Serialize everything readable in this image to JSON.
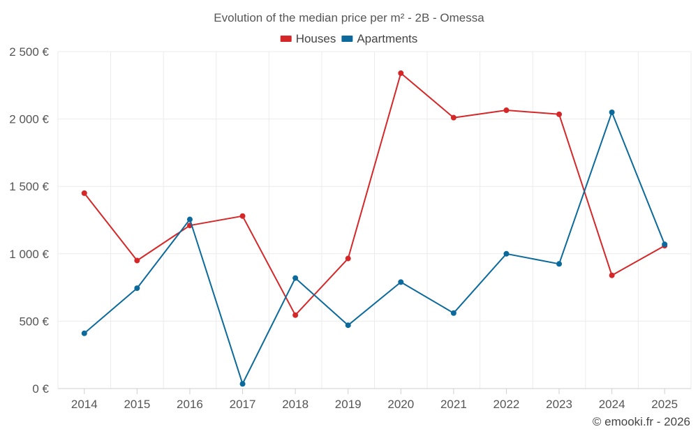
{
  "chart_data": {
    "type": "line",
    "title": "Evolution of the median price per m² - 2B - Omessa",
    "categories": [
      "2014",
      "2015",
      "2016",
      "2017",
      "2018",
      "2019",
      "2020",
      "2021",
      "2022",
      "2023",
      "2024",
      "2025"
    ],
    "series": [
      {
        "name": "Houses",
        "color": "#d62728",
        "values": [
          1450,
          950,
          1210,
          1280,
          545,
          965,
          2340,
          2010,
          2065,
          2035,
          840,
          1060
        ]
      },
      {
        "name": "Apartments",
        "color": "#0b6a9b",
        "values": [
          410,
          745,
          1255,
          35,
          820,
          470,
          790,
          560,
          1000,
          925,
          2050,
          1070
        ]
      }
    ],
    "ylim": [
      0,
      2500
    ],
    "yticks": [
      0,
      500,
      1000,
      1500,
      2000,
      2500
    ],
    "ytick_labels": [
      "0 €",
      "500 €",
      "1 000 €",
      "1 500 €",
      "2 000 €",
      "2 500 €"
    ],
    "grid": true,
    "legend_position": "top-center",
    "xlabel": "",
    "ylabel": ""
  },
  "credit": "© emooki.fr - 2026"
}
